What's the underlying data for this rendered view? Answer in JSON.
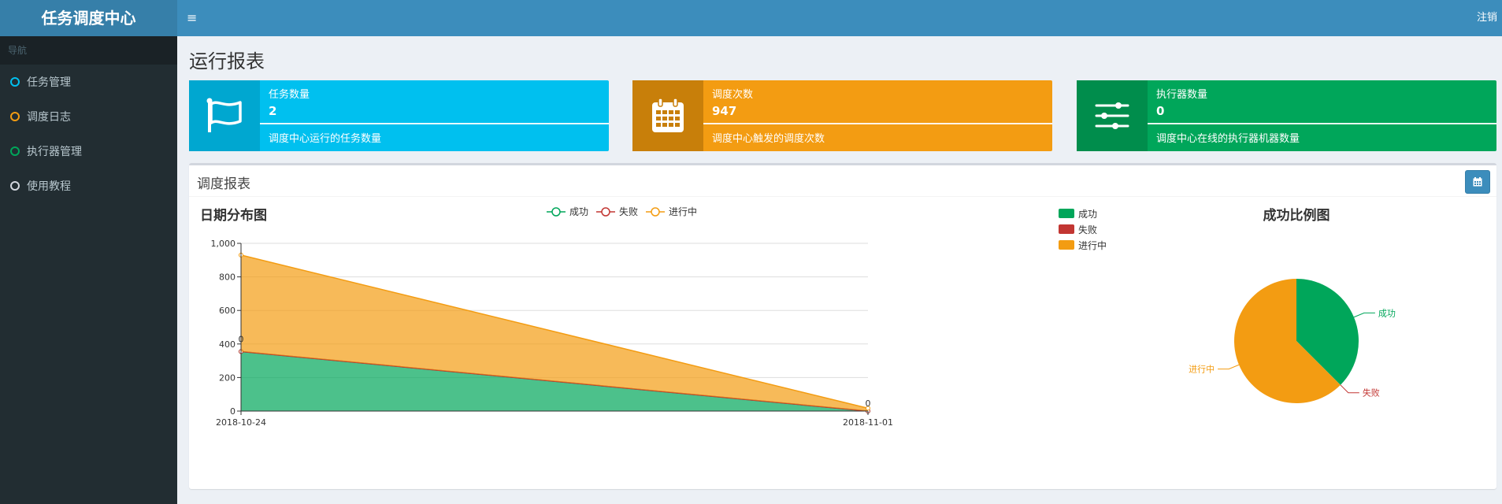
{
  "app": {
    "title": "任务调度中心",
    "logout": "注销"
  },
  "sidebar": {
    "header": "导航",
    "items": [
      {
        "label": "任务管理",
        "color": "#00c0ef"
      },
      {
        "label": "调度日志",
        "color": "#f39c12"
      },
      {
        "label": "执行器管理",
        "color": "#00a65a"
      },
      {
        "label": "使用教程",
        "color": "#d2d6de"
      }
    ]
  },
  "page": {
    "title": "运行报表"
  },
  "info_boxes": [
    {
      "label": "任务数量",
      "value": "2",
      "desc": "调度中心运行的任务数量",
      "icon": "flag-icon",
      "color": "#00c0ef",
      "icon_bg": "#00a7d0"
    },
    {
      "label": "调度次数",
      "value": "947",
      "desc": "调度中心触发的调度次数",
      "icon": "calendar-icon",
      "color": "#f39c12",
      "icon_bg": "#c87f0a"
    },
    {
      "label": "执行器数量",
      "value": "0",
      "desc": "调度中心在线的执行器机器数量",
      "icon": "sliders-icon",
      "color": "#00a65a",
      "icon_bg": "#008d4c"
    }
  ],
  "report": {
    "title": "调度报表",
    "date_button_icon": "calendar-icon"
  },
  "chart_data": [
    {
      "type": "area",
      "title": "日期分布图",
      "x": [
        "2018-10-24",
        "2018-11-01"
      ],
      "ylim": [
        0,
        1000
      ],
      "yticks": [
        0,
        200,
        400,
        600,
        800,
        1000
      ],
      "ytick_labels": [
        "0",
        "200",
        "400",
        "600",
        "800",
        "1,000"
      ],
      "stacked": true,
      "legend": "top",
      "series": [
        {
          "name": "成功",
          "values": [
            355,
            0
          ],
          "color": "#00a65a"
        },
        {
          "name": "失败",
          "values": [
            0,
            0
          ],
          "color": "#c23632"
        },
        {
          "name": "进行中",
          "values": [
            575,
            17
          ],
          "color": "#f39c12"
        }
      ],
      "labels": [
        {
          "point": 0,
          "text": "0"
        },
        {
          "point": 1,
          "text": "0"
        }
      ]
    },
    {
      "type": "pie",
      "title": "成功比例图",
      "legend": "top-left",
      "slices": [
        {
          "name": "成功",
          "value": 355,
          "color": "#00a65a"
        },
        {
          "name": "失败",
          "value": 0,
          "color": "#c23632"
        },
        {
          "name": "进行中",
          "value": 592,
          "color": "#f39c12"
        }
      ]
    }
  ]
}
